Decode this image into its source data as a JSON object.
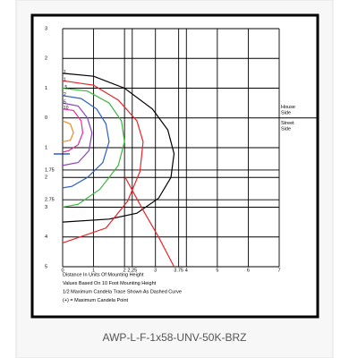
{
  "caption": "AWP-L-F-1x58-UNV-50K-BRZ",
  "chart_data": {
    "type": "isofootcandle",
    "xlim": [
      0,
      7
    ],
    "xticks": [
      0,
      1,
      2,
      2.25,
      3,
      3.75,
      4,
      5,
      6,
      7
    ],
    "ylim": [
      5,
      -3
    ],
    "yticks": [
      {
        "value": -3,
        "label": "3"
      },
      {
        "value": -2,
        "label": "2"
      },
      {
        "value": -1,
        "label": "1"
      },
      0,
      1,
      1.75,
      2,
      2.75,
      3,
      4,
      5
    ],
    "grid": true,
    "house_side": [
      "House",
      "Side"
    ],
    "street_side": [
      "Street",
      "Side"
    ],
    "notes": [
      "Distance In Units Of Mounting Height",
      "Values Based On 10 Foot Mounting Height",
      "1/2 Maximum Candela Trace Shown As Dashed Curve",
      "(+) = Maximum Candela Point"
    ],
    "series": [
      {
        "label": "1",
        "color": "#000000",
        "x": [
          0,
          1,
          2,
          2.9,
          3.4,
          3.6,
          3.5,
          3.1,
          2.4,
          1.5,
          0
        ],
        "y": [
          -1.5,
          -1.4,
          -1.0,
          -0.3,
          0.4,
          1.2,
          2.0,
          2.7,
          3.2,
          3.4,
          3.5
        ]
      },
      {
        "label": "1",
        "color": "#e8242a",
        "x": [
          0,
          1,
          1.8,
          2.4,
          2.6,
          2.5,
          2.1,
          1.4,
          0
        ],
        "y": [
          -1.25,
          -1.1,
          -0.6,
          0.1,
          0.8,
          1.8,
          2.8,
          3.7,
          4.2
        ]
      },
      {
        "color": "#e8242a",
        "x": [
          2.0,
          2.6,
          3.1,
          3.6
        ],
        "y": [
          1.95,
          3.1,
          4.0,
          5.0
        ]
      },
      {
        "label": ".5",
        "color": "#3cb53c",
        "x": [
          0,
          0.8,
          1.5,
          1.9,
          2.0,
          1.8,
          1.2,
          0.5,
          0
        ],
        "y": [
          -1,
          -0.9,
          -0.5,
          0.1,
          0.8,
          1.6,
          2.4,
          2.9,
          3.0
        ]
      },
      {
        "label": "2",
        "color": "#2d5fc4",
        "x": [
          0,
          0.6,
          1.1,
          1.4,
          1.5,
          1.3,
          0.8,
          0.3,
          0
        ],
        "y": [
          -0.75,
          -0.65,
          -0.3,
          0.2,
          0.8,
          1.5,
          2.0,
          2.3,
          2.35
        ]
      },
      {
        "label": "5",
        "color": "#8e44c4",
        "x": [
          0,
          0.5,
          0.8,
          0.95,
          0.85,
          0.5,
          0
        ],
        "y": [
          -0.5,
          -0.4,
          0,
          0.5,
          1.1,
          1.5,
          1.6
        ]
      },
      {
        "label": "10",
        "color": "#e0309c",
        "x": [
          0,
          0.35,
          0.6,
          0.65,
          0.5,
          0.2,
          0
        ],
        "y": [
          -0.3,
          -0.25,
          0.1,
          0.5,
          0.9,
          1.1,
          1.15
        ]
      },
      {
        "color": "#f08c1e",
        "x": [
          0,
          0.25,
          0.35,
          0.25,
          0
        ],
        "y": [
          0.1,
          0.2,
          0.5,
          0.75,
          0.8
        ]
      }
    ]
  }
}
